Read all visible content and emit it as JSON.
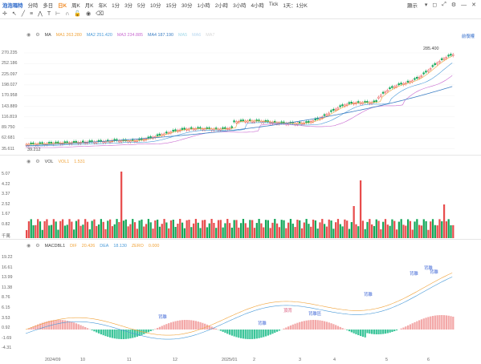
{
  "header": {
    "logo": "泡泡瑪特",
    "periods": [
      "分時",
      "多日",
      "日K",
      "周K",
      "月K",
      "年K",
      "1分",
      "3分",
      "5分",
      "10分",
      "15分",
      "30分",
      "1小時",
      "2小時",
      "3小時",
      "4小時",
      "Tick",
      "1天：1分K"
    ],
    "active_period": "日K",
    "display_label": "顯示"
  },
  "main_pane": {
    "indicator": "MA",
    "ma": [
      {
        "label": "MA1",
        "value": "263.280",
        "color": "#f0a33a"
      },
      {
        "label": "MA2",
        "value": "251.420",
        "color": "#4a9ad8"
      },
      {
        "label": "MA3",
        "value": "234.885",
        "color": "#c96bd1"
      },
      {
        "label": "MA4",
        "value": "187.190",
        "color": "#3d7fc4"
      },
      {
        "label": "MA5",
        "value": "",
        "color": "#9fd8e8"
      },
      {
        "label": "MA6",
        "value": "",
        "color": "#b7d7f0"
      },
      {
        "label": "MA7",
        "value": "",
        "color": "#d8d8d8"
      }
    ],
    "adjust_label": "前復權",
    "price_ticks": [
      "270.235",
      "252.186",
      "225.097",
      "198.027",
      "170.958",
      "143.889",
      "116.819",
      "89.750",
      "62.681",
      "35.611"
    ],
    "high_label": "285.400",
    "low_label": "39.212"
  },
  "vol_pane": {
    "indicator": "VOL",
    "vol1_label": "VOL1",
    "vol1_value": "1.531",
    "ticks": [
      "5.07",
      "4.22",
      "3.37",
      "2.52",
      "1.67",
      "0.82",
      "千萬"
    ]
  },
  "macd_pane": {
    "indicator": "MACDBL1",
    "dif_label": "DIF",
    "dif_value": "20.426",
    "dea_label": "DEA",
    "dea_value": "18.130",
    "zero_label": "ZERO",
    "zero_value": "0.000",
    "ticks": [
      "19.22",
      "16.61",
      "13.99",
      "11.38",
      "8.76",
      "6.15",
      "3.53",
      "0.92",
      "-1.69",
      "-4.31"
    ],
    "annotations": [
      {
        "text": "背離",
        "color": "#4a6fd8",
        "x": 197,
        "y": 397
      },
      {
        "text": "頂背",
        "color": "#d8567a",
        "x": 353,
        "y": 389
      },
      {
        "text": "背離",
        "color": "#4a6fd8",
        "x": 321,
        "y": 405
      },
      {
        "text": "背離區",
        "color": "#4a6fd8",
        "x": 384,
        "y": 393
      },
      {
        "text": "背離",
        "color": "#4a6fd8",
        "x": 453,
        "y": 369
      },
      {
        "text": "背離",
        "color": "#4a6fd8",
        "x": 510,
        "y": 343
      },
      {
        "text": "背離",
        "color": "#4a6fd8",
        "x": 528,
        "y": 336
      },
      {
        "text": "背離",
        "color": "#4a6fd8",
        "x": 535,
        "y": 341
      }
    ]
  },
  "x_axis": [
    {
      "label": "2024/09",
      "x": 64
    },
    {
      "label": "10",
      "x": 108
    },
    {
      "label": "11",
      "x": 166
    },
    {
      "label": "12",
      "x": 223
    },
    {
      "label": "2025/01",
      "x": 284
    },
    {
      "label": "2",
      "x": 323
    },
    {
      "label": "3",
      "x": 380
    },
    {
      "label": "4",
      "x": 423
    },
    {
      "label": "5",
      "x": 488
    },
    {
      "label": "6",
      "x": 540
    }
  ],
  "colors": {
    "up": "#e84d4d",
    "down": "#14a85a",
    "macd_pos": "#f3a8a8",
    "macd_neg": "#3cc59a"
  }
}
